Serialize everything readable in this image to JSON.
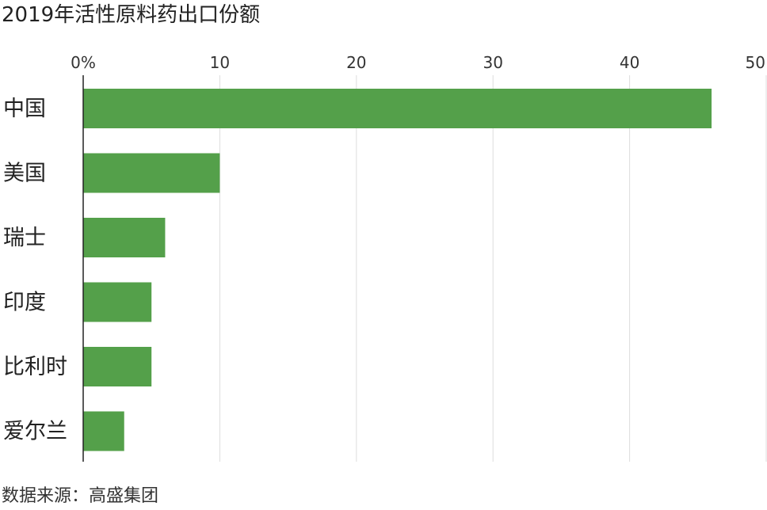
{
  "chart_data": {
    "type": "bar",
    "orientation": "horizontal",
    "title": "2019年活性原料药出口份额",
    "source": "数据来源：高盛集团",
    "categories": [
      "中国",
      "美国",
      "瑞士",
      "印度",
      "比利时",
      "爱尔兰"
    ],
    "values": [
      46,
      10,
      6,
      5,
      5,
      3
    ],
    "unit": "%",
    "xlim": [
      0,
      50
    ],
    "x_ticks": [
      "0%",
      "10",
      "20",
      "30",
      "40",
      "50"
    ],
    "x_tick_values": [
      0,
      10,
      20,
      30,
      40,
      50
    ],
    "grid": true,
    "axis_position": "top",
    "bar_color": "#54a04a"
  }
}
